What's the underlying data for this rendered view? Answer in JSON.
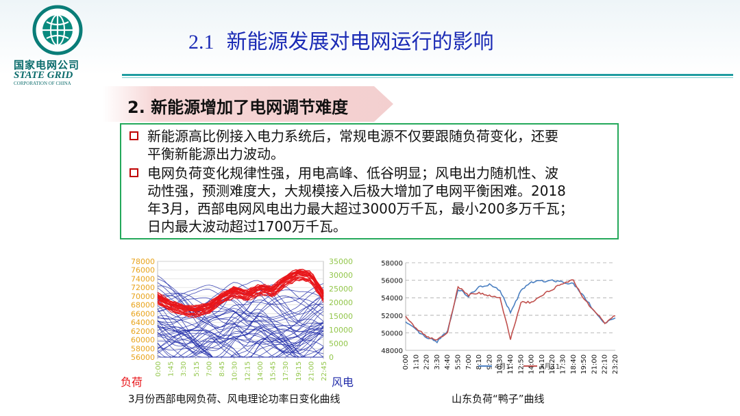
{
  "logo": {
    "emblem_text": "國家電網公司",
    "ring_text": "STATE GRID CORPORATION OF CHINA",
    "name_cn": "国家电网公司",
    "name_en": "STATE GRID",
    "name_en_sub": "CORPORATION OF CHINA"
  },
  "header": {
    "section_number": "2.1",
    "title": "新能源发展对电网运行的影响"
  },
  "subheading": "2. 新能源增加了电网调节难度",
  "bullets": [
    {
      "text": "新能源高比例接入电力系统后，常规电源不仅要跟随负荷变化，还要\n平衡新能源出力波动。"
    },
    {
      "text": "电网负荷变化规律性强，用电高峰、低谷明显；风电出力随机性、波\n动性强，预测难度大，大规模接入后极大增加了电网平衡困难。2018\n年3月，西部电网风电出力最大超过3000万千瓦，最小200多万千瓦；\n日内最大波动超过1700万千瓦。"
    }
  ],
  "colors": {
    "title": "#1b2bb5",
    "accent": "#1f9ca0",
    "box_border": "#23a85a",
    "bullet_mark": "#c00000",
    "banner": "#f6d6d6"
  },
  "chart_data": [
    {
      "type": "line",
      "title": "",
      "caption": "3月份西部电网负荷、风电理论功率日变化曲线",
      "y_left_label": "负荷",
      "y_right_label": "风电",
      "y_left_ticks": [
        "78000",
        "76000",
        "74000",
        "72000",
        "70000",
        "68000",
        "66000",
        "64000",
        "62000",
        "60000",
        "58000",
        "56000"
      ],
      "y_right_ticks": [
        "35000",
        "30000",
        "25000",
        "20000",
        "15000",
        "10000",
        "5000",
        "0"
      ],
      "x_ticks": [
        "0:00",
        "1:45",
        "3:30",
        "5:15",
        "7:00",
        "8:45",
        "10:30",
        "12:15",
        "14:00",
        "15:45",
        "17:30",
        "19:15",
        "21:00",
        "22:45"
      ],
      "ylim_left": [
        56000,
        78000
      ],
      "ylim_right": [
        0,
        35000
      ],
      "series": [
        {
          "color": "#e8151a",
          "values": [
            69500,
            67800,
            66800,
            66500,
            67200,
            69500,
            71000,
            70200,
            71500,
            71000,
            73500,
            75000,
            74500,
            70000
          ]
        },
        {
          "color": "#1f2aa8",
          "values": [
            14000,
            12500,
            12000,
            11000,
            11500,
            10500,
            12000,
            11000,
            13000,
            12500,
            11500,
            10000,
            11000,
            12000
          ]
        }
      ],
      "grid": true
    },
    {
      "type": "line",
      "title": "",
      "caption": "山东负荷“鸭子”曲线",
      "y_ticks": [
        "58000",
        "56000",
        "54000",
        "52000",
        "50000",
        "48000"
      ],
      "ylim": [
        48000,
        58000
      ],
      "x_ticks": [
        "0:00",
        "1:10",
        "2:20",
        "3:30",
        "4:40",
        "5:50",
        "7:00",
        "8:10",
        "9:20",
        "10:30",
        "11:40",
        "12:50",
        "14:00",
        "15:10",
        "16:20",
        "17:30",
        "18:40",
        "19:50",
        "21:00",
        "22:10",
        "23:20"
      ],
      "series": [
        {
          "name": "4月1",
          "color": "#4a7fc1",
          "values": [
            51200,
            50300,
            49400,
            49000,
            50200,
            55000,
            54200,
            55200,
            55500,
            54800,
            52300,
            54800,
            55800,
            55900,
            56000,
            55800,
            55600,
            54200,
            52500,
            51000,
            51800
          ]
        },
        {
          "name": "4月11",
          "color": "#c0504d",
          "values": [
            51800,
            50500,
            49600,
            49200,
            50000,
            55300,
            54300,
            54600,
            54200,
            54000,
            49300,
            53500,
            53500,
            54300,
            55000,
            55600,
            56000,
            53900,
            52500,
            51100,
            52000
          ]
        }
      ],
      "grid": true
    }
  ]
}
